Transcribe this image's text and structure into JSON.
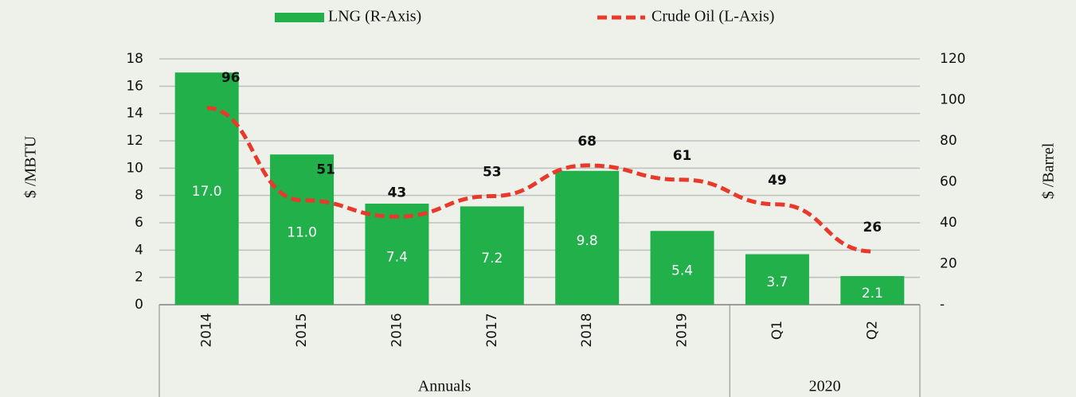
{
  "chart_data": {
    "type": "bar",
    "categories": [
      "2014",
      "2015",
      "2016",
      "2017",
      "2018",
      "2019",
      "Q1",
      "Q2"
    ],
    "groups": [
      {
        "label": "Annuals",
        "span": 6
      },
      {
        "label": "2020",
        "span": 2
      }
    ],
    "ylabel": "$ /MBTU",
    "y2label": "$ /Barrel",
    "ylim": [
      0,
      18
    ],
    "yticks": [
      0,
      2,
      4,
      6,
      8,
      10,
      12,
      14,
      16,
      18
    ],
    "y2lim": [
      0,
      120
    ],
    "y2ticks": [
      {
        "value": 0,
        "label": "-"
      },
      20,
      40,
      60,
      80,
      100,
      120
    ],
    "grid": true,
    "legend": "top",
    "series": [
      {
        "name": "LNG (R-Axis)",
        "type": "bar",
        "color": "#22b04b",
        "values": [
          17.0,
          11.0,
          7.4,
          7.2,
          9.8,
          5.4,
          3.7,
          2.1
        ],
        "value_labels": [
          "17.0",
          "11.0",
          "7.4",
          "7.2",
          "9.8",
          "5.4",
          "3.7",
          "2.1"
        ]
      },
      {
        "name": "Crude Oil (L-Axis)",
        "type": "line",
        "axis": "y2",
        "color": "#e8392b",
        "values": [
          96,
          51,
          43,
          53,
          68,
          61,
          49,
          26
        ]
      }
    ]
  }
}
